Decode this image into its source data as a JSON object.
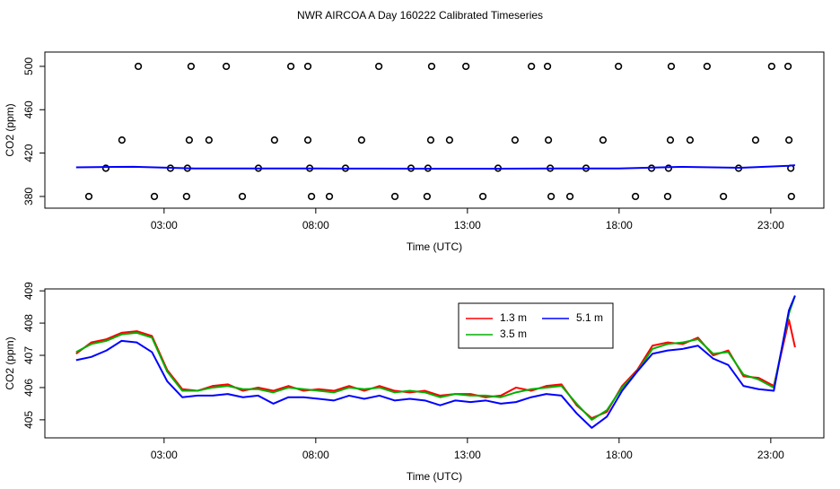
{
  "chart_data": [
    {
      "type": "scatter",
      "title": "NWR AIRCOA A  Day 160222  Calibrated Timeseries",
      "xlabel": "Time (UTC)",
      "ylabel": "CO2 (ppm)",
      "xlim": [
        -0.93,
        24.75
      ],
      "ylim": [
        369.2,
        513.2
      ],
      "xticks": [
        {
          "value": 3,
          "label": "03:00"
        },
        {
          "value": 8,
          "label": "08:00"
        },
        {
          "value": 13,
          "label": "13:00"
        },
        {
          "value": 18,
          "label": "18:00"
        },
        {
          "value": 23,
          "label": "23:00"
        }
      ],
      "yticks": [
        380,
        420,
        460,
        500
      ],
      "series": [
        {
          "type": "scatter",
          "color": "#000000",
          "x": [
            2.15,
            3.89,
            5.05,
            7.18,
            7.74,
            10.08,
            11.82,
            12.95,
            15.11,
            15.64,
            17.98,
            19.72,
            20.9,
            23.03,
            23.57,
            1.61,
            3.83,
            4.48,
            6.64,
            7.74,
            9.51,
            11.79,
            12.41,
            14.57,
            15.67,
            17.47,
            19.69,
            20.34,
            22.5,
            23.6,
            1.08,
            3.21,
            3.77,
            6.11,
            7.8,
            8.98,
            11.14,
            11.7,
            14.01,
            15.73,
            16.91,
            19.07,
            19.63,
            21.94,
            23.66,
            0.52,
            2.68,
            3.74,
            5.58,
            7.86,
            8.45,
            10.61,
            11.67,
            13.51,
            15.76,
            16.38,
            18.54,
            19.6,
            21.44,
            23.68
          ],
          "values": [
            500,
            500,
            500,
            500,
            500,
            500,
            500,
            500,
            500,
            500,
            500,
            500,
            500,
            500,
            500,
            432,
            432,
            432,
            432,
            432,
            432,
            432,
            432,
            432,
            432,
            432,
            432,
            432,
            432,
            432,
            406,
            406,
            406,
            406,
            406,
            406,
            406,
            406,
            406,
            406,
            406,
            406,
            406,
            406,
            406,
            380,
            380,
            380,
            380,
            380,
            380,
            380,
            380,
            380,
            380,
            380,
            380,
            380,
            380,
            380
          ]
        },
        {
          "type": "line",
          "color": "#0000ff",
          "x": [
            0.1,
            2,
            4,
            6,
            8,
            10,
            12,
            14,
            16,
            18,
            20,
            22,
            23.6,
            23.8
          ],
          "values": [
            406.9,
            407.4,
            405.8,
            405.8,
            405.8,
            405.7,
            405.6,
            405.6,
            405.8,
            405.8,
            407.3,
            406.4,
            408.3,
            408.8
          ]
        }
      ]
    },
    {
      "type": "line",
      "xlabel": "Time (UTC)",
      "ylabel": "CO2 (ppm)",
      "xlim": [
        -0.93,
        24.75
      ],
      "ylim": [
        404.44,
        409.06
      ],
      "xticks": [
        {
          "value": 3,
          "label": "03:00"
        },
        {
          "value": 8,
          "label": "08:00"
        },
        {
          "value": 13,
          "label": "13:00"
        },
        {
          "value": 18,
          "label": "18:00"
        },
        {
          "value": 23,
          "label": "23:00"
        }
      ],
      "yticks": [
        405,
        406,
        407,
        408,
        409
      ],
      "legend": "top",
      "x": [
        0.1,
        0.6,
        1.1,
        1.6,
        2.1,
        2.6,
        3.1,
        3.6,
        4.1,
        4.6,
        5.1,
        5.6,
        6.1,
        6.6,
        7.1,
        7.6,
        8.1,
        8.6,
        9.1,
        9.6,
        10.1,
        10.6,
        11.1,
        11.6,
        12.1,
        12.6,
        13.1,
        13.6,
        14.1,
        14.6,
        15.1,
        15.6,
        16.1,
        16.6,
        17.1,
        17.6,
        18.1,
        18.6,
        19.1,
        19.6,
        20.1,
        20.6,
        21.1,
        21.6,
        22.1,
        22.6,
        23.1,
        23.6,
        23.8
      ],
      "series": [
        {
          "name": "1.3 m",
          "color": "#ff0000",
          "values": [
            407.05,
            407.4,
            407.5,
            407.7,
            407.75,
            407.6,
            406.55,
            405.95,
            405.9,
            406.05,
            406.1,
            405.9,
            406.0,
            405.9,
            406.05,
            405.9,
            405.95,
            405.9,
            406.05,
            405.9,
            406.05,
            405.9,
            405.85,
            405.9,
            405.75,
            405.8,
            405.8,
            405.7,
            405.75,
            406.0,
            405.9,
            406.05,
            406.1,
            405.45,
            405.05,
            405.25,
            406.05,
            406.55,
            407.3,
            407.4,
            407.35,
            407.55,
            407.0,
            407.15,
            406.35,
            406.3,
            406.05,
            408.1,
            407.25
          ]
        },
        {
          "name": "3.5 m",
          "color": "#00b000",
          "values": [
            407.1,
            407.35,
            407.45,
            407.65,
            407.7,
            407.55,
            406.5,
            405.9,
            405.9,
            406.0,
            406.05,
            405.95,
            405.95,
            405.85,
            406.0,
            405.95,
            405.9,
            405.85,
            406.0,
            405.95,
            406.0,
            405.85,
            405.9,
            405.85,
            405.7,
            405.8,
            405.75,
            405.75,
            405.7,
            405.85,
            405.95,
            406.0,
            406.05,
            405.5,
            405.0,
            405.3,
            406.0,
            406.5,
            407.2,
            407.35,
            407.4,
            407.5,
            407.05,
            407.1,
            406.4,
            406.25,
            406.0,
            408.3,
            408.85
          ]
        },
        {
          "name": "5.1 m",
          "color": "#0000ff",
          "values": [
            406.85,
            406.95,
            407.15,
            407.45,
            407.4,
            407.1,
            406.2,
            405.7,
            405.75,
            405.75,
            405.8,
            405.7,
            405.75,
            405.5,
            405.7,
            405.7,
            405.65,
            405.6,
            405.75,
            405.65,
            405.75,
            405.6,
            405.65,
            405.6,
            405.45,
            405.6,
            405.55,
            405.6,
            405.5,
            405.55,
            405.7,
            405.8,
            405.75,
            405.2,
            404.75,
            405.1,
            405.9,
            406.5,
            407.05,
            407.15,
            407.2,
            407.3,
            406.9,
            406.7,
            406.05,
            405.95,
            405.9,
            408.4,
            408.85
          ]
        }
      ]
    }
  ]
}
